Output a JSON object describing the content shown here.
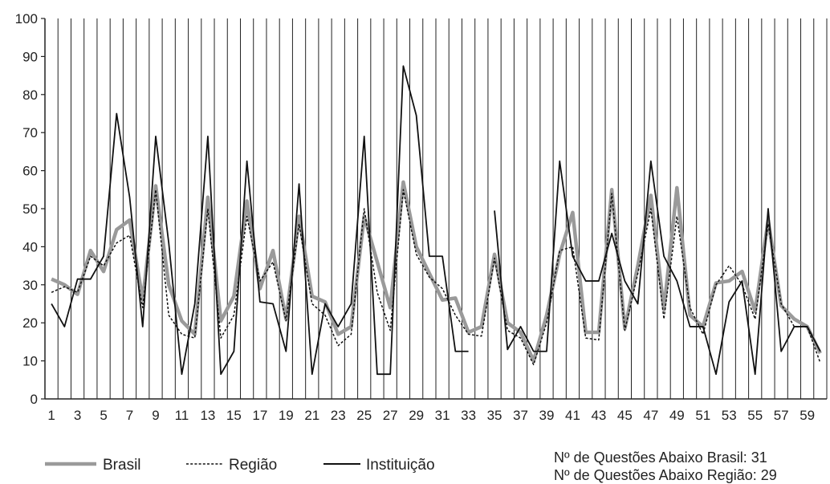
{
  "chart_data": {
    "type": "line",
    "title": "",
    "xlabel": "",
    "ylabel": "",
    "ylim": [
      0,
      100
    ],
    "yticks": [
      0,
      10,
      20,
      30,
      40,
      50,
      60,
      70,
      80,
      90,
      100
    ],
    "x": [
      1,
      2,
      3,
      4,
      5,
      6,
      7,
      8,
      9,
      10,
      11,
      12,
      13,
      14,
      15,
      16,
      17,
      18,
      19,
      20,
      21,
      22,
      23,
      24,
      25,
      26,
      27,
      28,
      29,
      30,
      31,
      32,
      33,
      34,
      35,
      36,
      37,
      38,
      39,
      40,
      41,
      42,
      43,
      44,
      45,
      46,
      47,
      48,
      49,
      50,
      51,
      52,
      53,
      54,
      55,
      56,
      57,
      58,
      59,
      60
    ],
    "xtick_labels": [
      "1",
      "3",
      "5",
      "7",
      "9",
      "11",
      "13",
      "15",
      "17",
      "19",
      "21",
      "23",
      "25",
      "27",
      "29",
      "31",
      "33",
      "35",
      "37",
      "39",
      "41",
      "43",
      "45",
      "47",
      "49",
      "51",
      "53",
      "55",
      "57",
      "59"
    ],
    "grid": "vertical",
    "legend_position": "bottom",
    "series": [
      {
        "name": "Brasil",
        "style": "thick-gray",
        "color": "#9a9a9a",
        "values": [
          31.5,
          30,
          27.5,
          39,
          33.5,
          44.5,
          47,
          26,
          56,
          30,
          20.5,
          17,
          53,
          20.5,
          27,
          52,
          29,
          39,
          21,
          48,
          27,
          25.5,
          17,
          19,
          48,
          36,
          24,
          57,
          40,
          33,
          26,
          26.5,
          17.5,
          19,
          38,
          20,
          17.5,
          10,
          22,
          38,
          49,
          17.5,
          17.5,
          55,
          18.5,
          35,
          53.5,
          23.5,
          55.5,
          22,
          19,
          30.5,
          31,
          33.5,
          23,
          47,
          24.5,
          21,
          19,
          12
        ]
      },
      {
        "name": "Região",
        "style": "dashed-black",
        "color": "#111111",
        "values": [
          28,
          29.5,
          28,
          37.5,
          35,
          41,
          43,
          24,
          55,
          22,
          17,
          16,
          50,
          16,
          22,
          48,
          31,
          36,
          20.5,
          46,
          25,
          22,
          14,
          17,
          50,
          28,
          18,
          55,
          38,
          32,
          29,
          22,
          17,
          16.5,
          37,
          18,
          16,
          9,
          20,
          39,
          40,
          16,
          15.5,
          54,
          18,
          33,
          50,
          21,
          48,
          24,
          17,
          30,
          35,
          30,
          21,
          46,
          25,
          19,
          19,
          9.5
        ]
      },
      {
        "name": "Instituição",
        "style": "solid-black",
        "color": "#111111",
        "values": [
          25,
          19,
          31.5,
          31.5,
          37.5,
          75,
          53,
          19,
          69,
          41,
          6.5,
          25,
          69,
          6.5,
          12.5,
          62.5,
          25.5,
          25,
          12.5,
          56.5,
          6.5,
          25,
          19,
          25,
          69,
          6.5,
          6.5,
          87.5,
          74.5,
          37.5,
          37.5,
          12.5,
          12.5,
          null,
          49.5,
          13,
          19,
          12.5,
          12.5,
          62.5,
          37.5,
          31,
          31,
          43.5,
          31,
          25,
          62.5,
          37.5,
          31,
          19,
          19,
          6.5,
          25.5,
          31,
          6.5,
          50,
          12.5,
          19,
          19,
          12.5
        ]
      }
    ]
  },
  "legend": {
    "items": [
      "Brasil",
      "Região",
      "Instituição"
    ]
  },
  "notes": {
    "line1": "Nº de Questões Abaixo Brasil: 31",
    "line2": "Nº de Questões Abaixo Região: 29"
  }
}
